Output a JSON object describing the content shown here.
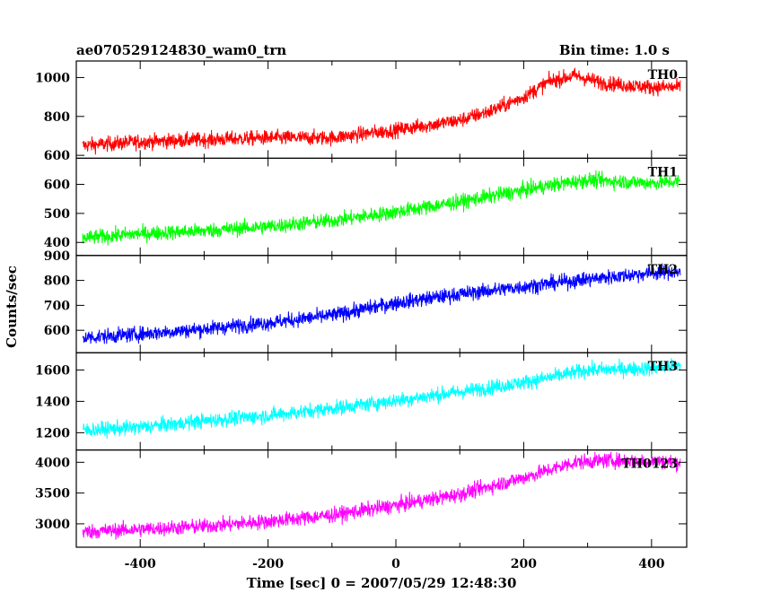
{
  "chart_data": {
    "type": "line",
    "title": "ae070529124830_wam0_trn",
    "subtitle": "Bin time: 1.0 s",
    "xlabel": "Time [sec] 0 = 2007/05/29 12:48:30",
    "ylabel": "Counts/sec",
    "xlim": [
      -500,
      455
    ],
    "x_ticks": [
      -400,
      -200,
      0,
      200,
      400
    ],
    "grid": false,
    "panels": [
      {
        "name": "TH0",
        "color": "#ff0000",
        "ylim": [
          585,
          1085
        ],
        "y_ticks": [
          600,
          800,
          1000
        ],
        "x": [
          -490,
          -400,
          -300,
          -200,
          -100,
          0,
          100,
          150,
          200,
          240,
          280,
          320,
          360,
          400,
          445
        ],
        "values": [
          650,
          670,
          680,
          690,
          690,
          730,
          780,
          830,
          900,
          980,
          1010,
          975,
          960,
          950,
          950
        ]
      },
      {
        "name": "TH1",
        "color": "#00ff00",
        "ylim": [
          355,
          690
        ],
        "y_ticks": [
          400,
          500,
          600
        ],
        "x": [
          -490,
          -400,
          -300,
          -200,
          -100,
          0,
          100,
          200,
          250,
          300,
          350,
          400,
          445
        ],
        "values": [
          415,
          430,
          440,
          455,
          475,
          505,
          540,
          580,
          600,
          615,
          610,
          605,
          610
        ]
      },
      {
        "name": "TH2",
        "color": "#0000ff",
        "ylim": [
          510,
          900
        ],
        "y_ticks": [
          600,
          700,
          800,
          900
        ],
        "x": [
          -490,
          -400,
          -300,
          -200,
          -100,
          0,
          100,
          200,
          300,
          400,
          445
        ],
        "values": [
          570,
          585,
          605,
          630,
          660,
          710,
          745,
          775,
          805,
          830,
          835
        ]
      },
      {
        "name": "TH3",
        "color": "#00ffff",
        "ylim": [
          1090,
          1710
        ],
        "y_ticks": [
          1200,
          1400,
          1600
        ],
        "x": [
          -490,
          -400,
          -300,
          -200,
          -100,
          0,
          100,
          200,
          300,
          400,
          445
        ],
        "values": [
          1215,
          1235,
          1275,
          1310,
          1355,
          1405,
          1460,
          1520,
          1600,
          1610,
          1630
        ]
      },
      {
        "name": "TH0123",
        "color": "#ff00ff",
        "ylim": [
          2620,
          4200
        ],
        "y_ticks": [
          3000,
          3500,
          4000
        ],
        "x": [
          -490,
          -400,
          -300,
          -200,
          -100,
          0,
          100,
          200,
          280,
          330,
          400,
          445
        ],
        "values": [
          2870,
          2910,
          2960,
          3040,
          3140,
          3300,
          3480,
          3750,
          4000,
          4030,
          4020,
          4000
        ]
      }
    ]
  }
}
